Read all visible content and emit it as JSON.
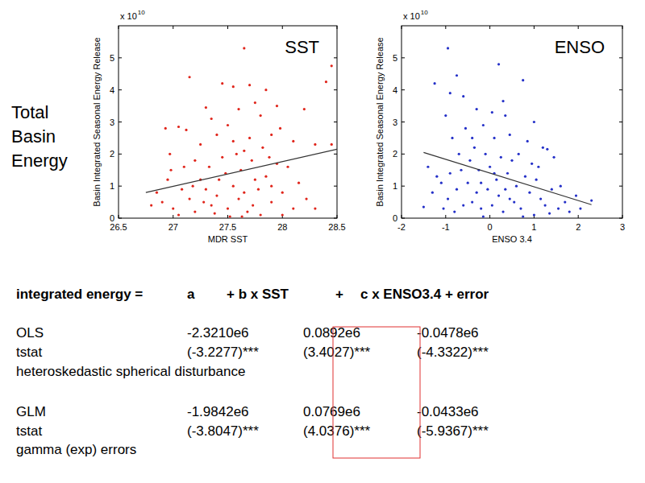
{
  "chart_data": [
    {
      "type": "scatter",
      "title": "SST",
      "x_label": "MDR SST",
      "y_label": "Basin Integrated Seasonal Energy Release",
      "annotations": [
        {
          "text": "x 10",
          "exponent": "10"
        }
      ],
      "color": "#e0251b",
      "marker": "dot",
      "xlim": [
        26.5,
        28.5
      ],
      "xticks": [
        26.5,
        27,
        27.5,
        28,
        28.5
      ],
      "ylim": [
        0,
        6
      ],
      "yticks": [
        0,
        1,
        2,
        3,
        4,
        5
      ],
      "x": [
        27.65,
        28.45,
        27.15,
        27.45,
        27.55,
        27.85,
        28.4,
        27.7,
        27.3,
        27.75,
        27.95,
        28.2,
        27.6,
        27.05,
        27.12,
        26.93,
        26.97,
        27.25,
        27.35,
        27.5,
        27.8,
        28.1,
        28.3,
        28.45,
        27.9,
        27.65,
        27.45,
        27.2,
        27.1,
        26.98,
        26.85,
        26.9,
        26.8,
        27.0,
        27.05,
        27.15,
        27.2,
        27.3,
        27.35,
        27.4,
        27.42,
        27.5,
        27.55,
        27.6,
        27.62,
        27.68,
        27.72,
        27.78,
        27.8,
        27.85,
        27.9,
        27.95,
        28.0,
        28.05,
        28.1,
        28.15,
        28.3,
        28.22,
        27.25,
        27.33,
        27.48,
        27.58,
        27.7,
        27.75,
        27.82,
        27.88,
        27.98,
        27.52,
        27.38,
        27.28,
        27.18,
        27.08,
        26.95,
        27.65,
        27.55,
        27.4,
        27.9,
        28.0,
        27.73,
        27.63
      ],
      "y": [
        5.3,
        4.75,
        4.4,
        4.2,
        4.1,
        4.0,
        4.25,
        4.15,
        3.45,
        3.6,
        3.5,
        3.4,
        3.4,
        2.85,
        2.75,
        2.8,
        2.0,
        2.3,
        3.1,
        2.9,
        3.2,
        2.4,
        2.3,
        2.3,
        2.6,
        2.1,
        1.9,
        1.8,
        1.6,
        1.5,
        0.8,
        0.5,
        0.4,
        0.3,
        0.1,
        0.6,
        0.2,
        0.9,
        0.4,
        0.7,
        1.2,
        0.3,
        1.0,
        0.6,
        1.5,
        0.2,
        1.8,
        0.9,
        0.1,
        1.3,
        0.5,
        1.7,
        0.8,
        1.6,
        0.3,
        1.1,
        0.3,
        0.6,
        1.2,
        1.6,
        1.4,
        2.0,
        2.5,
        1.2,
        2.2,
        1.9,
        2.8,
        0.05,
        0.15,
        0.5,
        1.0,
        0.9,
        1.2,
        0.8,
        2.4,
        2.6,
        1.0,
        0.1,
        0.4,
        0.05
      ],
      "fit": {
        "x": [
          26.75,
          28.5
        ],
        "y": [
          0.8,
          2.15
        ]
      }
    },
    {
      "type": "scatter",
      "title": "ENSO",
      "x_label": "ENSO 3.4",
      "y_label": "Basin Integrated Seasonal Energy Release",
      "annotations": [
        {
          "text": "x 10",
          "exponent": "10"
        }
      ],
      "color": "#2430c8",
      "marker": "dot",
      "xlim": [
        -2,
        3
      ],
      "xticks": [
        -2,
        -1,
        0,
        1,
        2,
        3
      ],
      "ylim": [
        0,
        6
      ],
      "yticks": [
        0,
        1,
        2,
        3,
        4,
        5
      ],
      "x": [
        -0.95,
        -0.75,
        -0.9,
        -1.25,
        0.2,
        0.75,
        0.3,
        -0.3,
        -0.6,
        -1.0,
        0.05,
        0.35,
        -0.15,
        0.45,
        1.0,
        0.85,
        1.2,
        1.3,
        1.45,
        -1.4,
        -1.2,
        -1.1,
        -0.85,
        -0.7,
        -0.55,
        -0.45,
        -0.35,
        -0.25,
        -0.1,
        0.0,
        0.1,
        0.15,
        0.25,
        0.4,
        0.5,
        0.6,
        0.65,
        0.8,
        0.9,
        1.05,
        1.15,
        1.25,
        1.4,
        1.55,
        1.7,
        1.8,
        1.95,
        2.05,
        2.3,
        1.6,
        1.0,
        0.7,
        0.55,
        0.3,
        0.2,
        0.05,
        -0.05,
        -0.2,
        -0.3,
        -0.4,
        -0.5,
        -0.6,
        -0.75,
        -0.8,
        -0.95,
        -1.05,
        -1.3,
        -1.5,
        -0.65,
        -0.2,
        0.35,
        0.75,
        1.1,
        -0.9,
        -0.4,
        0.1,
        0.45,
        0.95,
        -0.15,
        1.35
      ],
      "y": [
        5.3,
        4.45,
        3.9,
        4.2,
        4.8,
        4.3,
        3.65,
        3.4,
        3.8,
        3.2,
        3.3,
        3.2,
        2.9,
        2.6,
        3.0,
        2.4,
        2.2,
        2.15,
        1.9,
        1.6,
        1.3,
        1.1,
        2.5,
        2.0,
        2.8,
        1.8,
        2.2,
        1.5,
        2.0,
        1.6,
        2.5,
        1.2,
        1.9,
        1.4,
        1.8,
        1.0,
        2.0,
        1.3,
        0.8,
        1.2,
        0.6,
        0.4,
        0.9,
        0.3,
        0.5,
        0.2,
        0.7,
        0.3,
        0.55,
        1.0,
        0.1,
        0.3,
        0.5,
        0.2,
        0.7,
        0.4,
        0.9,
        0.3,
        0.8,
        0.5,
        1.1,
        0.4,
        0.9,
        0.2,
        0.6,
        0.3,
        0.8,
        0.35,
        1.5,
        1.1,
        0.9,
        0.05,
        1.6,
        1.4,
        2.5,
        1.4,
        0.6,
        1.7,
        0.05,
        0.15
      ],
      "fit": {
        "x": [
          -1.5,
          2.3
        ],
        "y": [
          2.05,
          0.42
        ]
      }
    }
  ],
  "side_label": [
    "Total",
    "Basin",
    "Energy"
  ],
  "equation": [
    "integrated energy =",
    "a",
    "+ b x SST",
    "+",
    "c x ENSO3.4 + error"
  ],
  "table": {
    "rows": [
      [
        "OLS",
        "-2.3210e6",
        "0.0892e6",
        "-0.0478e6"
      ],
      [
        "tstat",
        "(-3.2277)***",
        "(3.4027)***",
        "(-4.3322)***"
      ],
      [
        "heteroskedastic spherical disturbance"
      ],
      [
        "GLM",
        "-1.9842e6",
        "0.0769e6",
        "-0.0433e6"
      ],
      [
        "tstat",
        "(-3.8047)***",
        "(4.0376)***",
        "(-5.9367)***"
      ],
      [
        "gamma (exp) errors"
      ]
    ]
  }
}
